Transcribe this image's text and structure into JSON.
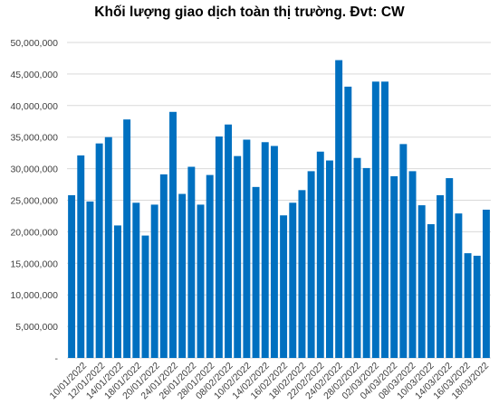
{
  "chart_data": {
    "type": "bar",
    "title": "Khối lượng giao dịch toàn thị trường. Đvt: CW",
    "xlabel": "",
    "ylabel": "",
    "ylim": [
      0,
      50000000
    ],
    "grid": true,
    "bar_color": "#0070C0",
    "y_ticks": [
      "-",
      "5,000,000",
      "10,000,000",
      "15,000,000",
      "20,000,000",
      "25,000,000",
      "30,000,000",
      "35,000,000",
      "40,000,000",
      "45,000,000",
      "50,000,000"
    ],
    "x_tick_labels": [
      "10/01/2022",
      "12/01/2022",
      "14/01/2022",
      "18/01/2022",
      "20/01/2022",
      "24/01/2022",
      "26/01/2022",
      "28/01/2022",
      "08/02/2022",
      "10/02/2022",
      "14/02/2022",
      "16/02/2022",
      "18/02/2022",
      "22/02/2022",
      "24/02/2022",
      "28/02/2022",
      "02/03/2022",
      "04/03/2022",
      "08/03/2022",
      "10/03/2022",
      "14/03/2022",
      "16/03/2022",
      "18/03/2022"
    ],
    "values": [
      25800000,
      32100000,
      24800000,
      34000000,
      35000000,
      21000000,
      37800000,
      24600000,
      19400000,
      24300000,
      29100000,
      39000000,
      26000000,
      30300000,
      24300000,
      29000000,
      35100000,
      37000000,
      32000000,
      34600000,
      27100000,
      34200000,
      33600000,
      22600000,
      24600000,
      26600000,
      29600000,
      32700000,
      31300000,
      47200000,
      43000000,
      31700000,
      30100000,
      43800000,
      43800000,
      28800000,
      33900000,
      29600000,
      24200000,
      21200000,
      25800000,
      28500000,
      22900000,
      16600000,
      16200000,
      23500000
    ]
  }
}
